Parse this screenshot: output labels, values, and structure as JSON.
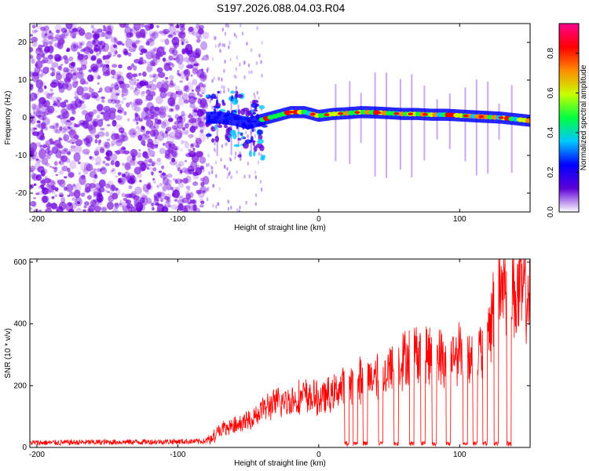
{
  "title": "S197.2026.088.04.03.R04",
  "chart_data": [
    {
      "type": "heatmap",
      "name": "spectrogram",
      "xlabel": "Height of straight line (km)",
      "ylabel": "Frequency (Hz)",
      "xlim": [
        -205,
        150
      ],
      "ylim": [
        -25,
        25
      ],
      "xticks": [
        -200,
        -100,
        0,
        100
      ],
      "yticks": [
        -20,
        -10,
        0,
        10,
        20
      ],
      "colorbar": {
        "label": "Normalized spectral amplitude",
        "range": [
          0,
          0.95
        ],
        "ticks": [
          "0.0",
          "0.2",
          "0.4",
          "0.6",
          "0.8"
        ],
        "tick_values": [
          0,
          0.2,
          0.4,
          0.6,
          0.8
        ],
        "colors": [
          "#ffffff",
          "#5f00d8",
          "#0000ff",
          "#00c8ff",
          "#00ff40",
          "#c8ff00",
          "#ff8c00",
          "#ff0000",
          "#ff0090"
        ]
      },
      "ridge": {
        "x": [
          -80,
          -70,
          -60,
          -50,
          -40,
          -30,
          -20,
          -10,
          0,
          10,
          20,
          30,
          40,
          50,
          60,
          70,
          80,
          90,
          100,
          110,
          120,
          130,
          140,
          150
        ],
        "freq": [
          0,
          0,
          -0.5,
          -1.5,
          -0.5,
          0.5,
          1.5,
          1.5,
          0.5,
          1,
          1.2,
          1.5,
          1.4,
          1.2,
          1,
          1,
          0.8,
          0.8,
          0.6,
          0.4,
          0.2,
          0,
          -0.4,
          -0.8
        ]
      },
      "noise_region_x": [
        -205,
        -80
      ]
    },
    {
      "type": "line",
      "name": "snr",
      "xlabel": "Height of straight line (km)",
      "ylabel": "SNR (10 * v/v)",
      "xlim": [
        -205,
        150
      ],
      "ylim": [
        0,
        610
      ],
      "xticks": [
        -200,
        -100,
        0,
        100
      ],
      "yticks": [
        0,
        200,
        400,
        600
      ],
      "color": "#ff0000",
      "envelope": {
        "x": [
          -205,
          -80,
          -70,
          -60,
          -50,
          -40,
          -30,
          -20,
          -10,
          0,
          10,
          20,
          30,
          40,
          50,
          60,
          70,
          80,
          90,
          100,
          110,
          120,
          125,
          130,
          140,
          150
        ],
        "y": [
          15,
          20,
          60,
          70,
          90,
          130,
          150,
          160,
          175,
          165,
          180,
          220,
          230,
          240,
          260,
          300,
          330,
          320,
          300,
          330,
          310,
          340,
          520,
          560,
          520,
          530
        ]
      },
      "dropouts_x": [
        20,
        26,
        33,
        44,
        55,
        66,
        74,
        82,
        92,
        104,
        111,
        118,
        126,
        135
      ]
    }
  ]
}
